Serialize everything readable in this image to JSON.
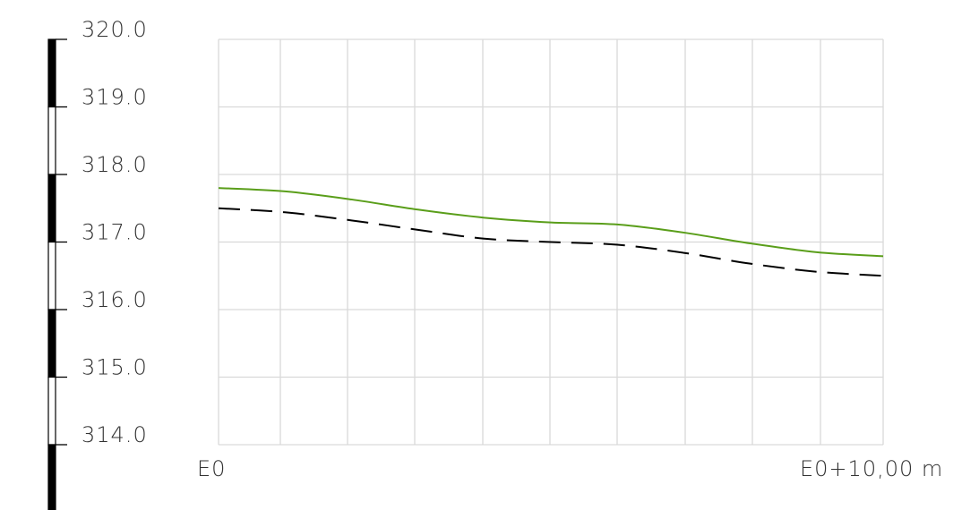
{
  "chart_data": {
    "type": "line",
    "grid": true,
    "legend": "none",
    "x_tick_labels": [
      "E0",
      "E0+10,00 m"
    ],
    "xlim": [
      0,
      10
    ],
    "ylim": [
      314.0,
      320.0
    ],
    "y_ticks": [
      314.0,
      315.0,
      316.0,
      317.0,
      318.0,
      319.0,
      320.0
    ],
    "y_tick_labels": [
      "314.0",
      "315.0",
      "316.0",
      "317.0",
      "318.0",
      "319.0",
      "320.0"
    ],
    "series": [
      {
        "color": "#5a9e1a",
        "style": "solid",
        "x": [
          0,
          1,
          2,
          3,
          4,
          5,
          6,
          7,
          8,
          9,
          10
        ],
        "y": [
          317.8,
          317.75,
          317.63,
          317.48,
          317.36,
          317.29,
          317.26,
          317.14,
          316.98,
          316.85,
          316.79
        ]
      },
      {
        "color": "#000000",
        "style": "dashed",
        "x": [
          0,
          1,
          2,
          3,
          4,
          5,
          6,
          7,
          8,
          9,
          10
        ],
        "y": [
          317.5,
          317.44,
          317.32,
          317.18,
          317.05,
          317.0,
          316.96,
          316.84,
          316.68,
          316.56,
          316.5
        ]
      }
    ]
  }
}
